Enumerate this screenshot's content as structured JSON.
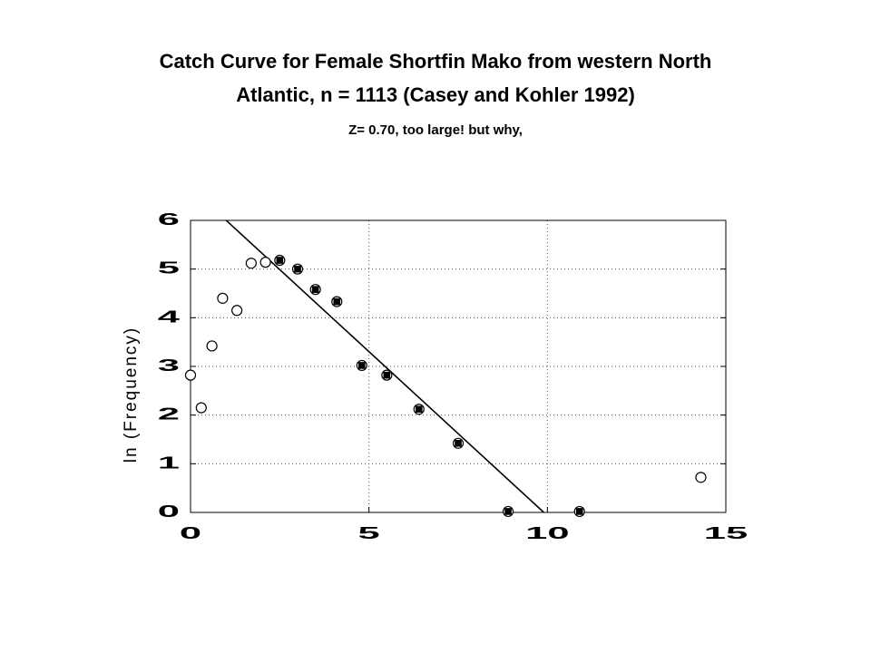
{
  "page": {
    "title_line1": "Catch Curve for Female Shortfin Mako from western North",
    "title_line2": "Atlantic, n = 1113 (Casey and Kohler 1992)",
    "subtitle": "Z= 0.70, too large! but why,"
  },
  "chart_data": {
    "type": "scatter",
    "title": "Catch Curve for Female Shortfin Mako from western North Atlantic, n = 1113 (Casey and Kohler 1992)",
    "subtitle": "Z= 0.70, too large! but why,",
    "xlabel": "",
    "ylabel": "ln (Frequency)",
    "xlim": [
      0,
      15
    ],
    "ylim": [
      0,
      6
    ],
    "x_ticks": [
      "0",
      "5",
      "10",
      "15"
    ],
    "y_ticks": [
      "0",
      "1",
      "2",
      "3",
      "4",
      "5",
      "6"
    ],
    "grid": true,
    "series": [
      {
        "marker": "open-circle",
        "color": "#000000",
        "points": [
          {
            "x": 0.0,
            "y": 2.82
          },
          {
            "x": 0.3,
            "y": 2.15
          },
          {
            "x": 0.6,
            "y": 3.42
          },
          {
            "x": 0.9,
            "y": 4.4
          },
          {
            "x": 1.3,
            "y": 4.15
          },
          {
            "x": 1.7,
            "y": 5.12
          },
          {
            "x": 2.1,
            "y": 5.14
          },
          {
            "x": 14.3,
            "y": 0.72
          }
        ]
      },
      {
        "marker": "filled-square-in-circle",
        "color": "#000000",
        "points": [
          {
            "x": 2.5,
            "y": 5.18
          },
          {
            "x": 3.0,
            "y": 5.0
          },
          {
            "x": 3.5,
            "y": 4.58
          },
          {
            "x": 4.1,
            "y": 4.33
          },
          {
            "x": 4.8,
            "y": 3.02
          },
          {
            "x": 5.5,
            "y": 2.82
          },
          {
            "x": 6.4,
            "y": 2.12
          },
          {
            "x": 7.5,
            "y": 1.42
          },
          {
            "x": 8.9,
            "y": 0.02
          },
          {
            "x": 10.9,
            "y": 0.02
          }
        ]
      }
    ],
    "fit_line": {
      "x1": 1.0,
      "y1": 6.0,
      "x2": 9.9,
      "y2": 0.0,
      "color": "#000000"
    }
  }
}
